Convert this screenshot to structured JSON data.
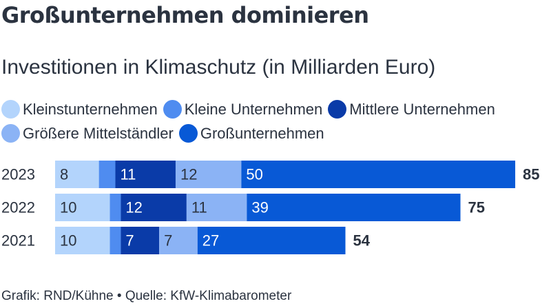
{
  "title": "Großunternehmen dominieren",
  "subtitle": "Investitionen in Klimaschutz (in Milliarden Euro)",
  "footer": "Grafik: RND/Kühne • Quelle: KfW-Klimabarometer",
  "chart_data": {
    "type": "bar",
    "orientation": "horizontal",
    "stacked": true,
    "categories": [
      "2023",
      "2022",
      "2021"
    ],
    "series": [
      {
        "name": "Kleinstunternehmen",
        "color": "#b3d4fc",
        "values": [
          8,
          10,
          10
        ],
        "labels": [
          "8",
          "10",
          "10"
        ]
      },
      {
        "name": "Kleine Unternehmen",
        "color": "#4f8cf0",
        "values": [
          3,
          2,
          2
        ],
        "labels": [
          "",
          "",
          ""
        ]
      },
      {
        "name": "Mittlere Unternehmen",
        "color": "#0a3ba8",
        "values": [
          11,
          12,
          7
        ],
        "labels": [
          "11",
          "12",
          "7"
        ]
      },
      {
        "name": "Größere Mittelständler",
        "color": "#8bb3f5",
        "values": [
          12,
          11,
          7
        ],
        "labels": [
          "12",
          "11",
          "7"
        ]
      },
      {
        "name": "Großunternehmen",
        "color": "#0859d6",
        "values": [
          50,
          39,
          27
        ],
        "labels": [
          "50",
          "39",
          "27"
        ]
      }
    ],
    "totals": [
      "85",
      "75",
      "54"
    ],
    "xlim": [
      0,
      85
    ],
    "grid": false,
    "legend_position": "top"
  }
}
